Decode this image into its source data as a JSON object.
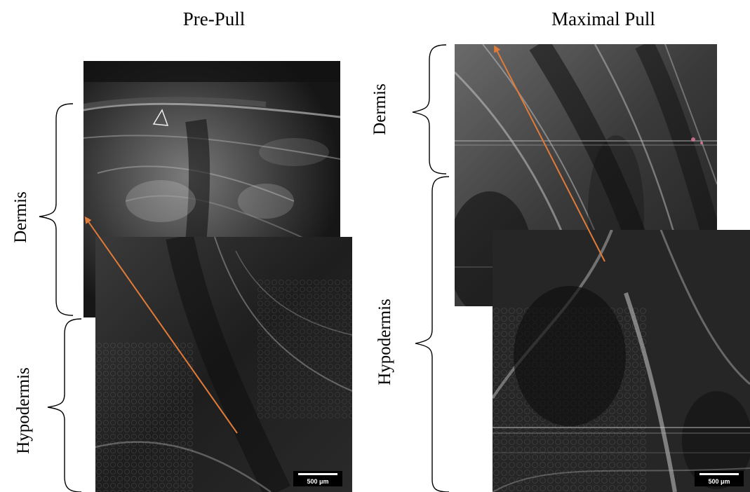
{
  "titles": {
    "left": "Pre-Pull",
    "right": "Maximal Pull"
  },
  "labels": {
    "left_dermis": "Dermis",
    "left_hypodermis": "Hypodermis",
    "right_dermis": "Dermis",
    "right_hypodermis": "Hypodermis"
  },
  "scale_bar": {
    "left": "500 μm",
    "right": "500 μm"
  },
  "colors": {
    "arrow": "#e07b39",
    "tissue_dark": "#1d1d1d",
    "tissue_fiber": "#bdbdbd",
    "brace": "#000000"
  }
}
